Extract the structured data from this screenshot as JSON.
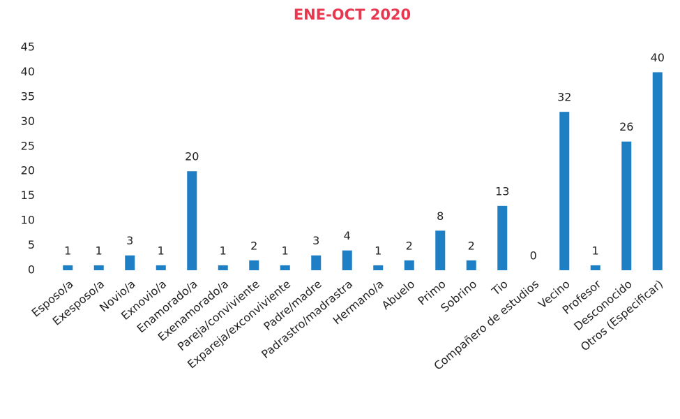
{
  "chart_data": {
    "type": "bar",
    "title": "ENE-OCT 2020",
    "categories": [
      "Esposo/a",
      "Exesposo/a",
      "Novio/a",
      "Exnovio/a",
      "Enamorado/a",
      "Exenamorado/a",
      "Pareja/conviviente",
      "Expareja/exconviviente",
      "Padre/madre",
      "Padrastro/madrastra",
      "Hermano/a",
      "Abuelo",
      "Primo",
      "Sobrino",
      "Tio",
      "Compañero de estudios",
      "Vecino",
      "Profesor",
      "Desconocido",
      "Otros (Especificar)"
    ],
    "values": [
      1,
      1,
      3,
      1,
      20,
      1,
      2,
      1,
      3,
      4,
      1,
      2,
      8,
      2,
      13,
      0,
      32,
      1,
      26,
      40
    ],
    "color": "#1f7fc4",
    "ylim": [
      0,
      45
    ],
    "yticks": [
      0,
      5,
      10,
      15,
      20,
      25,
      30,
      35,
      40,
      45
    ],
    "grid": false
  }
}
